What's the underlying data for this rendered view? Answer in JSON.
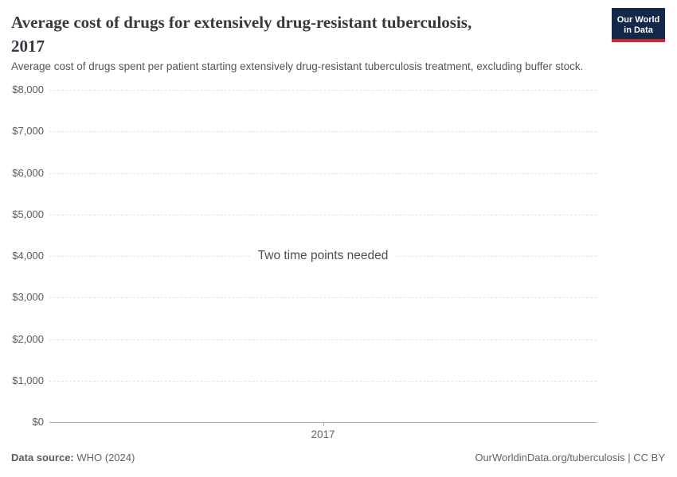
{
  "header": {
    "title_lines": [
      "Average cost of drugs for extensively drug-resistant tuberculosis,",
      "2017"
    ],
    "subtitle": "Average cost of drugs spent per patient starting extensively drug-resistant tuberculosis treatment, excluding buffer stock.",
    "logo": {
      "line1": "Our World",
      "line2": "in Data",
      "bg_color": "#14284b",
      "accent_color": "#c3282d",
      "text_color": "#ffffff"
    }
  },
  "chart_data": {
    "type": "line",
    "title": "Average cost of drugs for extensively drug-resistant tuberculosis, 2017",
    "xlabel": "",
    "ylabel": "",
    "series": [],
    "message": "Two time points needed",
    "ylim": [
      0,
      8000
    ],
    "yticks": [
      {
        "value": 0,
        "label": "$0"
      },
      {
        "value": 1000,
        "label": "$1,000"
      },
      {
        "value": 2000,
        "label": "$2,000"
      },
      {
        "value": 3000,
        "label": "$3,000"
      },
      {
        "value": 4000,
        "label": "$4,000"
      },
      {
        "value": 5000,
        "label": "$5,000"
      },
      {
        "value": 6000,
        "label": "$6,000"
      },
      {
        "value": 7000,
        "label": "$7,000"
      },
      {
        "value": 8000,
        "label": "$8,000"
      }
    ],
    "xticks": [
      {
        "label": "2017",
        "position": 0.5
      }
    ],
    "grid": true,
    "legend_position": "none",
    "gridline_color": "#e3e3e3",
    "axis_color": "#a6a6a6"
  },
  "footer": {
    "datasource_label": "Data source:",
    "datasource_value": " WHO (2024)",
    "attribution": "OurWorldinData.org/tuberculosis | CC BY"
  }
}
